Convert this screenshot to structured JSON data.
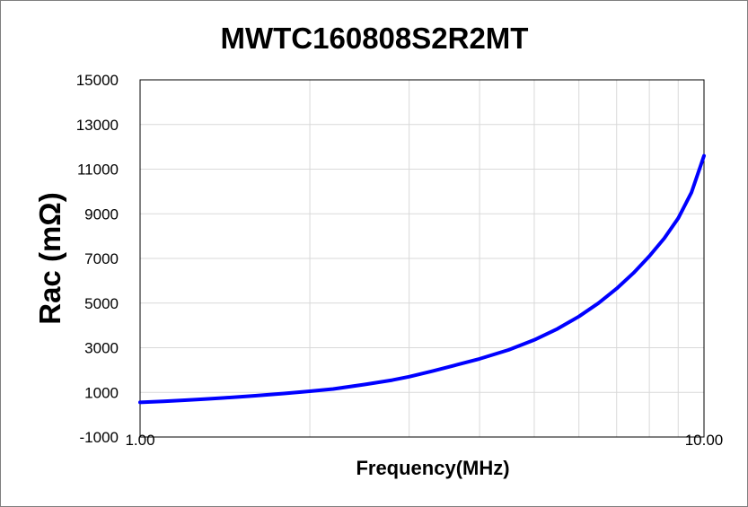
{
  "chart_data": {
    "type": "line",
    "title": "MWTC160808S2R2MT",
    "xlabel": "Frequency(MHz)",
    "ylabel": "Rac (mΩ)",
    "x_scale": "log",
    "xlim": [
      1,
      10
    ],
    "ylim": [
      -1000,
      15000
    ],
    "x_tick_labels": [
      "1.00",
      "10.00"
    ],
    "y_ticks": [
      -1000,
      1000,
      3000,
      5000,
      7000,
      9000,
      11000,
      13000,
      15000
    ],
    "y_tick_labels": [
      "-1000",
      "1000",
      "3000",
      "5000",
      "7000",
      "9000",
      "11000",
      "13000",
      "15000"
    ],
    "grid": true,
    "series_color": "#0000ff",
    "series": [
      {
        "x": [
          1.0,
          1.1,
          1.2,
          1.3,
          1.4,
          1.5,
          1.6,
          1.8,
          2.0,
          2.2,
          2.5,
          2.8,
          3.0,
          3.3,
          3.6,
          4.0,
          4.5,
          5.0,
          5.5,
          6.0,
          6.5,
          7.0,
          7.5,
          8.0,
          8.5,
          9.0,
          9.5,
          10.0
        ],
        "y": [
          550,
          600,
          650,
          700,
          750,
          800,
          850,
          950,
          1050,
          1150,
          1350,
          1550,
          1700,
          1950,
          2200,
          2500,
          2900,
          3350,
          3850,
          4400,
          5000,
          5650,
          6350,
          7100,
          7900,
          8800,
          9950,
          11600
        ]
      }
    ]
  }
}
